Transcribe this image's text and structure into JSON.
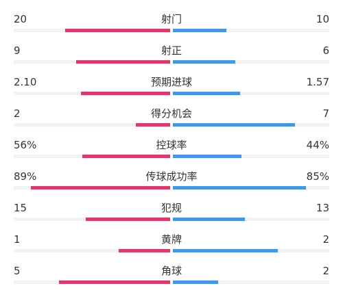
{
  "colors": {
    "home": "#e8336d",
    "away": "#3a9bee",
    "track": "#f2f2f4",
    "text": "#333333"
  },
  "stats": [
    {
      "label": "射门",
      "home": "20",
      "away": "10",
      "home_fraction": 0.67,
      "away_fraction": 0.34
    },
    {
      "label": "射正",
      "home": "9",
      "away": "6",
      "home_fraction": 0.6,
      "away_fraction": 0.4
    },
    {
      "label": "预期进球",
      "home": "2.10",
      "away": "1.57",
      "home_fraction": 0.57,
      "away_fraction": 0.43
    },
    {
      "label": "得分机会",
      "home": "2",
      "away": "7",
      "home_fraction": 0.22,
      "away_fraction": 0.78
    },
    {
      "label": "控球率",
      "home": "56%",
      "away": "44%",
      "home_fraction": 0.56,
      "away_fraction": 0.44
    },
    {
      "label": "传球成功率",
      "home": "89%",
      "away": "85%",
      "home_fraction": 0.89,
      "away_fraction": 0.85
    },
    {
      "label": "犯规",
      "home": "15",
      "away": "13",
      "home_fraction": 0.54,
      "away_fraction": 0.46
    },
    {
      "label": "黄牌",
      "home": "1",
      "away": "2",
      "home_fraction": 0.33,
      "away_fraction": 0.67
    },
    {
      "label": "角球",
      "home": "5",
      "away": "2",
      "home_fraction": 0.71,
      "away_fraction": 0.29
    }
  ]
}
